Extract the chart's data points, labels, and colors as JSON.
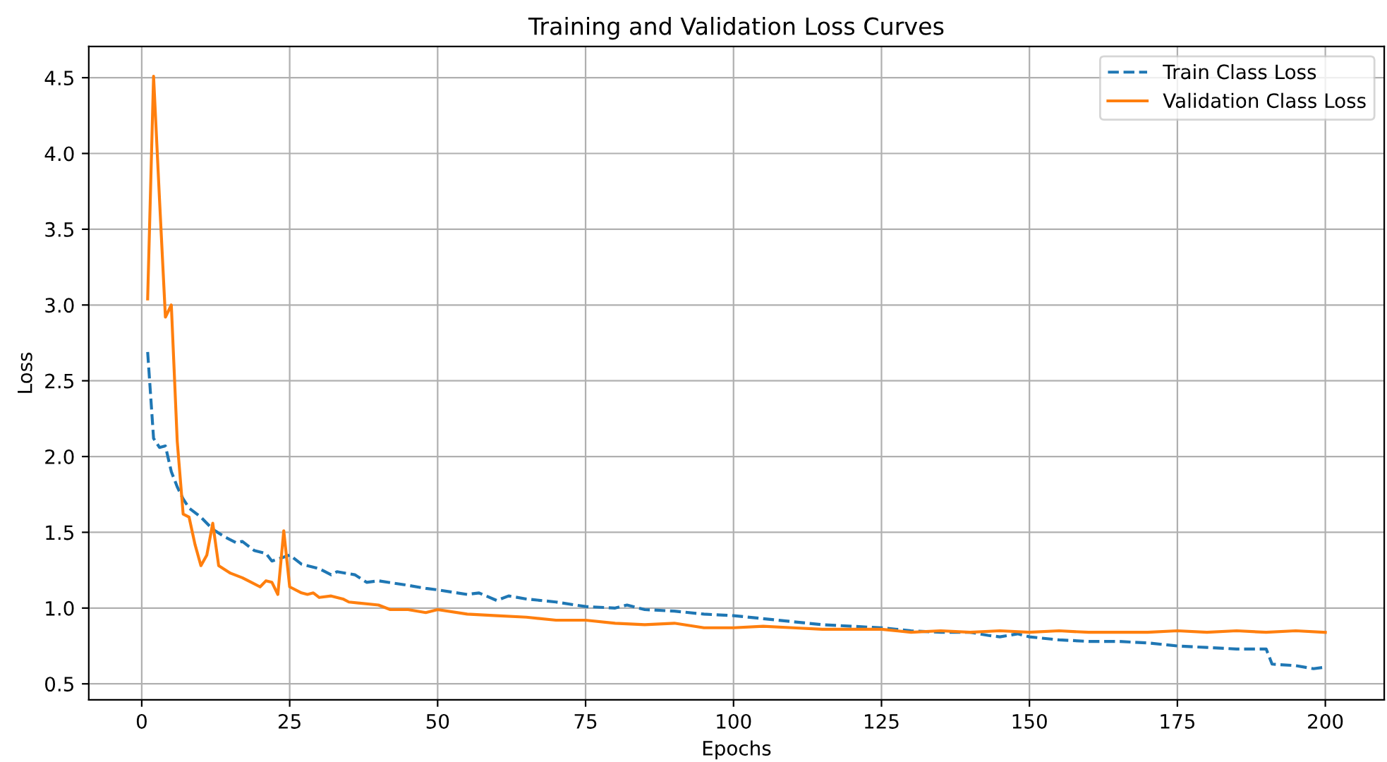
{
  "chart_data": {
    "type": "line",
    "title": "Training and Validation Loss Curves",
    "xlabel": "Epochs",
    "ylabel": "Loss",
    "xlim": [
      -8.95,
      209.95
    ],
    "xticks": [
      0,
      25,
      50,
      75,
      100,
      125,
      150,
      175,
      200
    ],
    "ylim": [
      0.394,
      4.706
    ],
    "yticks": [
      {
        "value": 0.5,
        "label": "0.5"
      },
      {
        "value": 1.0,
        "label": "1.0"
      },
      {
        "value": 1.5,
        "label": "1.5"
      },
      {
        "value": 2.0,
        "label": "2.0"
      },
      {
        "value": 2.5,
        "label": "2.5"
      },
      {
        "value": 3.0,
        "label": "3.0"
      },
      {
        "value": 3.5,
        "label": "3.5"
      },
      {
        "value": 4.0,
        "label": "4.0"
      },
      {
        "value": 4.5,
        "label": "4.5"
      }
    ],
    "grid": true,
    "legend": "top right",
    "series": [
      {
        "name": "Train Class Loss",
        "color": "#1f77b4",
        "line_style": "dashed",
        "x": [
          1,
          2,
          3,
          4,
          5,
          6,
          7,
          8,
          10,
          12,
          14,
          16,
          17,
          19,
          21,
          22,
          25,
          27,
          30,
          32,
          33,
          36,
          38,
          40,
          45,
          48,
          50,
          55,
          57,
          60,
          62,
          65,
          70,
          75,
          80,
          82,
          85,
          90,
          95,
          100,
          105,
          110,
          115,
          120,
          125,
          130,
          135,
          140,
          143,
          145,
          148,
          150,
          155,
          160,
          165,
          170,
          175,
          180,
          185,
          189,
          190,
          191,
          195,
          198,
          200
        ],
        "values": [
          2.69,
          2.12,
          2.06,
          2.07,
          1.9,
          1.8,
          1.72,
          1.66,
          1.6,
          1.52,
          1.47,
          1.43,
          1.44,
          1.38,
          1.36,
          1.31,
          1.35,
          1.29,
          1.26,
          1.22,
          1.24,
          1.22,
          1.17,
          1.18,
          1.15,
          1.13,
          1.12,
          1.09,
          1.1,
          1.05,
          1.08,
          1.06,
          1.04,
          1.01,
          1.0,
          1.02,
          0.99,
          0.98,
          0.96,
          0.95,
          0.93,
          0.91,
          0.89,
          0.88,
          0.87,
          0.85,
          0.84,
          0.84,
          0.82,
          0.81,
          0.83,
          0.81,
          0.79,
          0.78,
          0.78,
          0.77,
          0.75,
          0.74,
          0.73,
          0.73,
          0.73,
          0.63,
          0.62,
          0.6,
          0.61
        ]
      },
      {
        "name": "Validation Class Loss",
        "color": "#ff7f0e",
        "line_style": "solid",
        "x": [
          1,
          2,
          3,
          4,
          5,
          6,
          7,
          8,
          9,
          10,
          11,
          12,
          13,
          15,
          17,
          18,
          20,
          21,
          22,
          23,
          24,
          25,
          27,
          28,
          29,
          30,
          32,
          34,
          35,
          40,
          42,
          45,
          48,
          50,
          55,
          60,
          65,
          70,
          75,
          80,
          85,
          90,
          95,
          100,
          105,
          110,
          115,
          120,
          125,
          130,
          135,
          140,
          145,
          150,
          155,
          160,
          165,
          170,
          175,
          180,
          185,
          190,
          195,
          200
        ],
        "values": [
          3.04,
          4.51,
          3.7,
          2.92,
          3.0,
          2.1,
          1.62,
          1.6,
          1.42,
          1.28,
          1.35,
          1.56,
          1.28,
          1.23,
          1.2,
          1.18,
          1.14,
          1.18,
          1.17,
          1.09,
          1.51,
          1.14,
          1.1,
          1.09,
          1.1,
          1.07,
          1.08,
          1.06,
          1.04,
          1.02,
          0.99,
          0.99,
          0.97,
          0.99,
          0.96,
          0.95,
          0.94,
          0.92,
          0.92,
          0.9,
          0.89,
          0.9,
          0.87,
          0.87,
          0.88,
          0.87,
          0.86,
          0.86,
          0.86,
          0.84,
          0.85,
          0.84,
          0.85,
          0.84,
          0.85,
          0.84,
          0.84,
          0.84,
          0.85,
          0.84,
          0.85,
          0.84,
          0.85,
          0.84
        ]
      }
    ]
  }
}
